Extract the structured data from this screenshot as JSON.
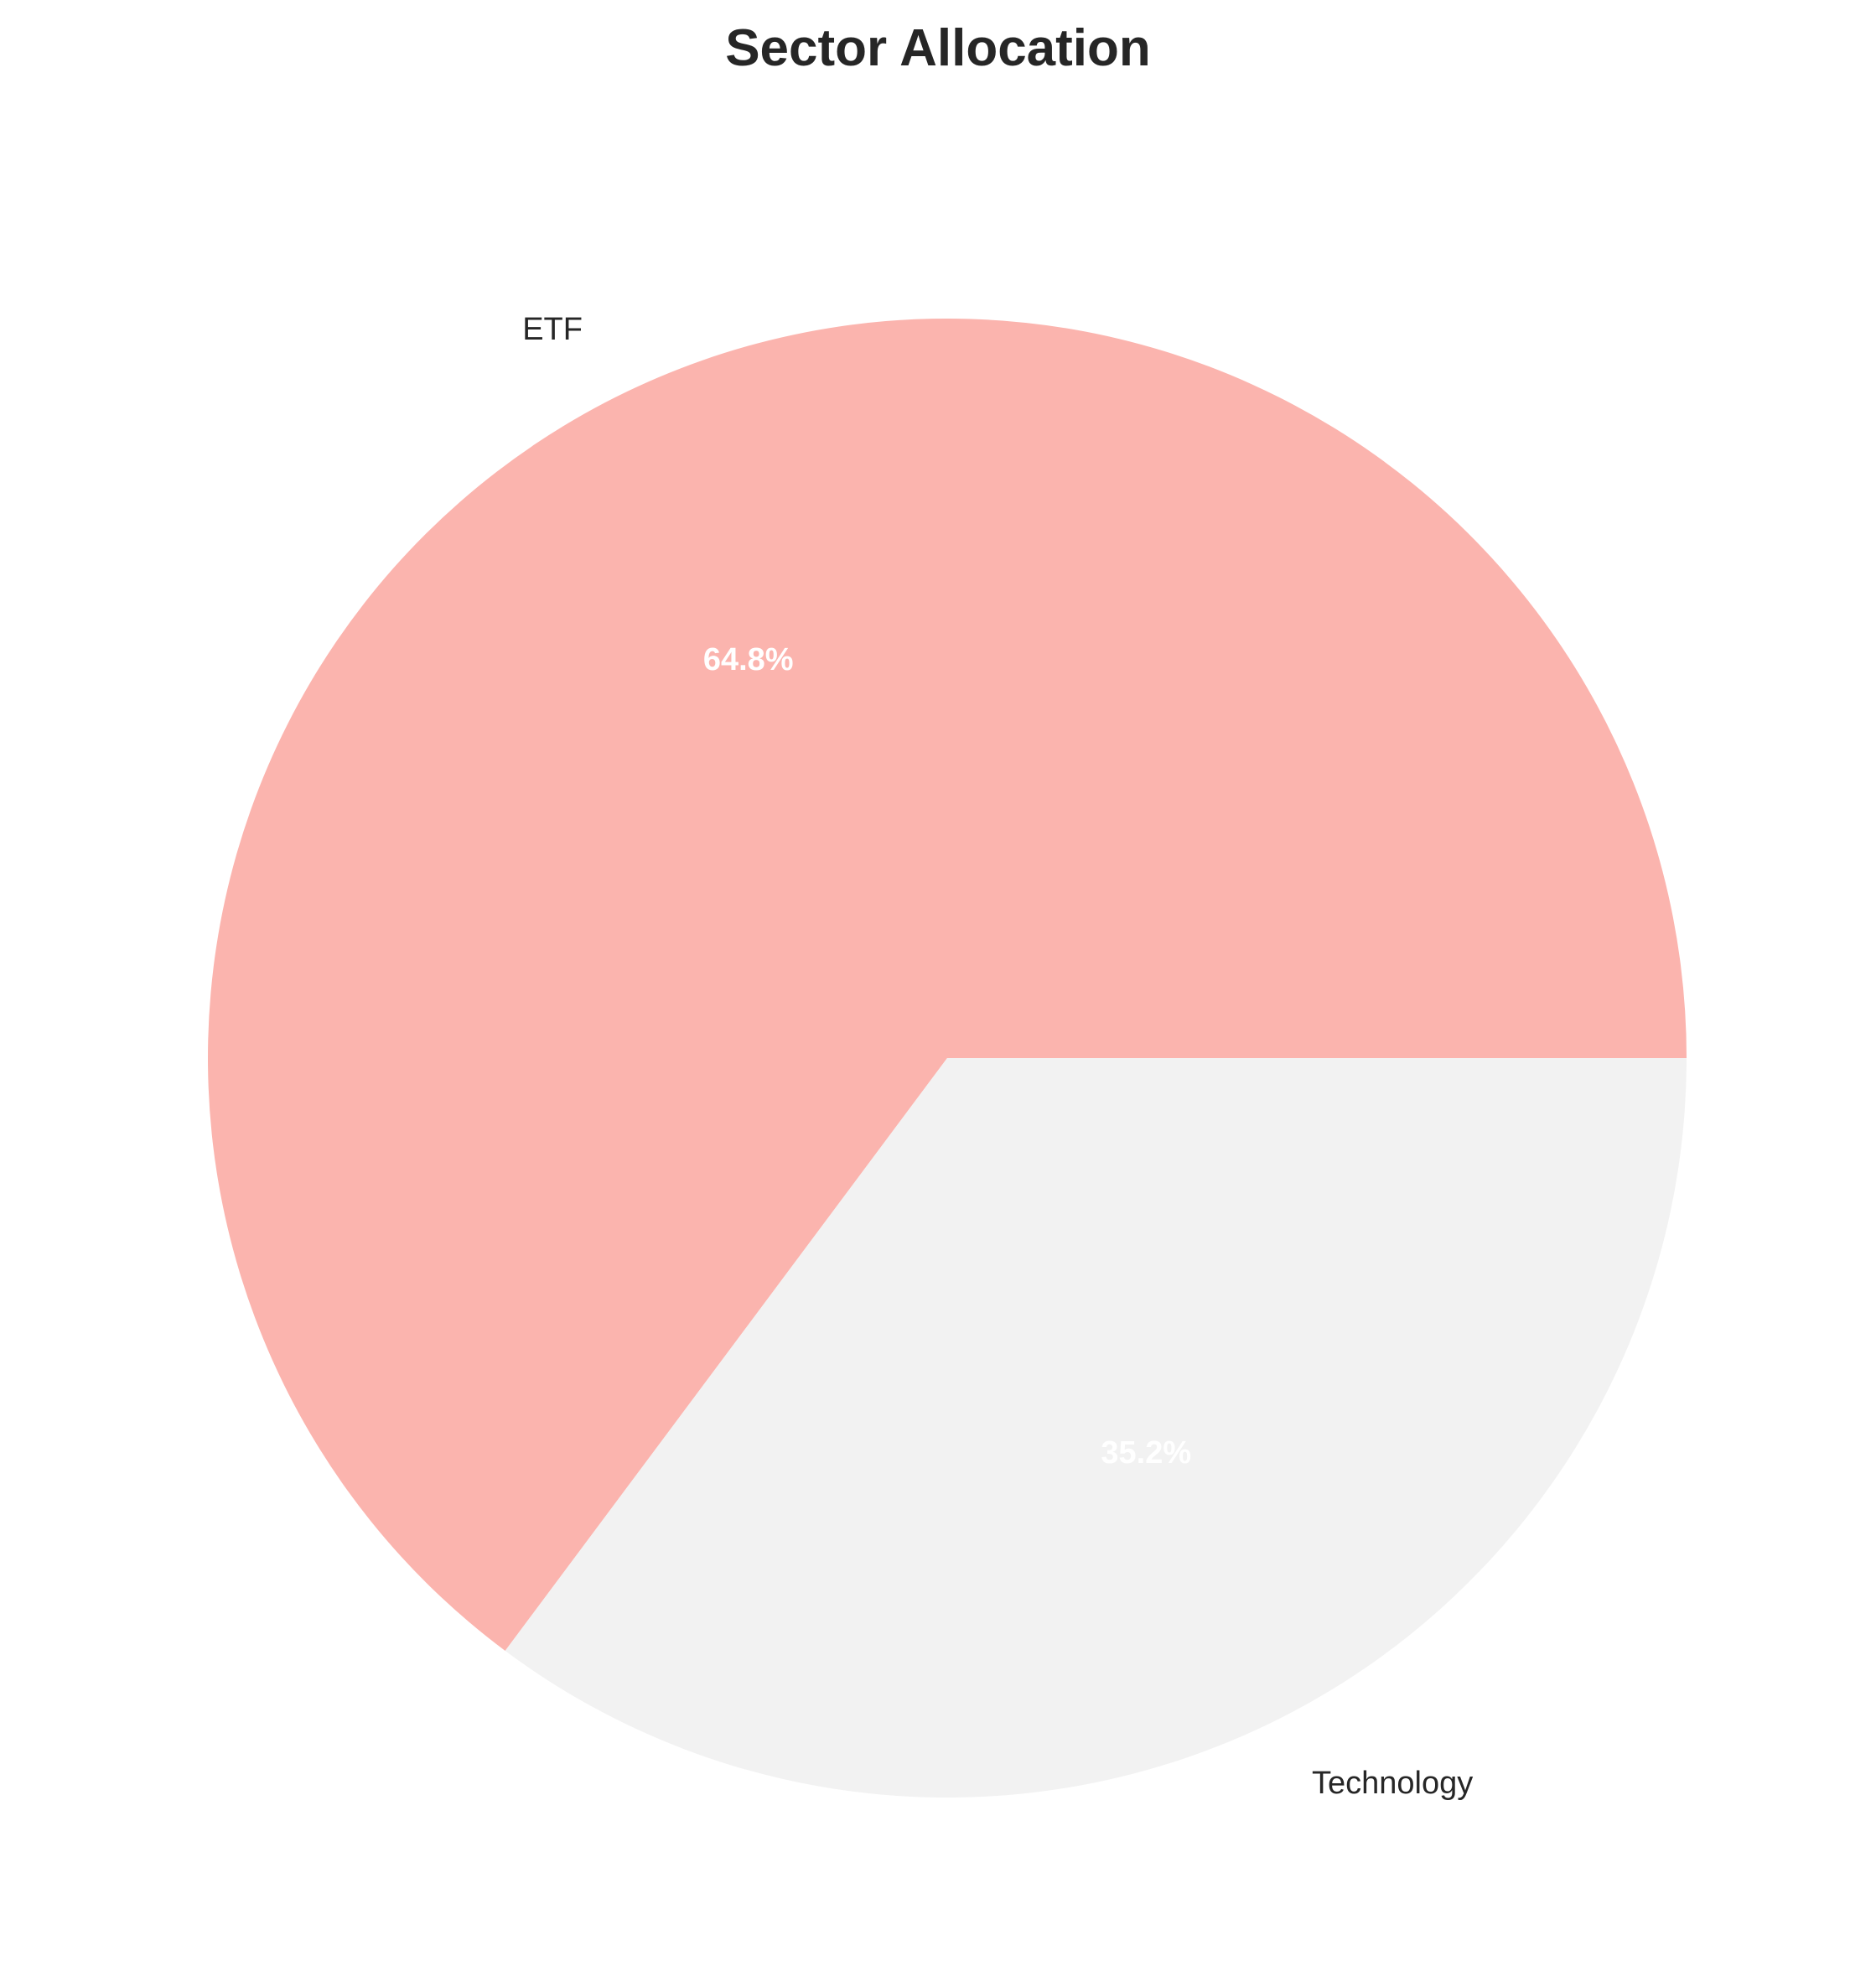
{
  "chart_data": {
    "type": "pie",
    "title": "Sector Allocation",
    "slices": [
      {
        "label": "ETF",
        "value": 64.8,
        "pct_label": "64.8%",
        "color": "#fbb4ae"
      },
      {
        "label": "Technology",
        "value": 35.2,
        "pct_label": "35.2%",
        "color": "#f2f2f2"
      }
    ],
    "start_angle_deg": 0,
    "direction": "counterclockwise",
    "legend": "none"
  }
}
